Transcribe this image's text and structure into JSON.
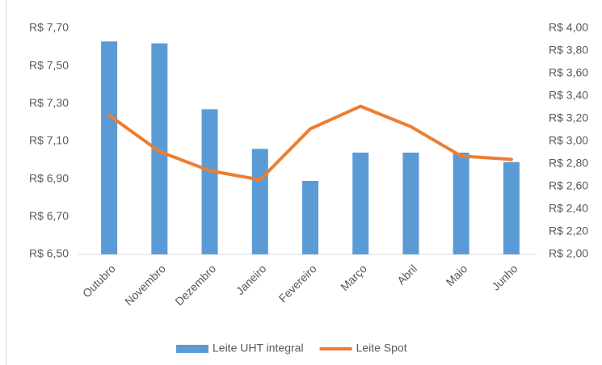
{
  "chart_data": {
    "type": "bar",
    "categories": [
      "Outubro",
      "Novembro",
      "Dezembro",
      "Janeiro",
      "Fevereiro",
      "Março",
      "Abril",
      "Maio",
      "Junho"
    ],
    "series": [
      {
        "name": "Leite UHT integral",
        "color": "#5b9bd5",
        "type": "bar",
        "values": [
          7.63,
          7.62,
          7.27,
          7.06,
          6.89,
          7.04,
          7.04,
          7.04,
          6.99
        ]
      },
      {
        "name": "Leite Spot",
        "color": "#ed7d31",
        "type": "line",
        "axis": "y2",
        "values": [
          3.23,
          2.91,
          2.74,
          2.66,
          3.11,
          3.31,
          3.13,
          2.87,
          2.84
        ]
      }
    ],
    "ylim": [
      6.5,
      7.7
    ],
    "yticks": [
      {
        "value": 6.5,
        "label": "R$ 6,50"
      },
      {
        "value": 6.7,
        "label": "R$ 6,70"
      },
      {
        "value": 6.9,
        "label": "R$ 6,90"
      },
      {
        "value": 7.1,
        "label": "R$ 7,10"
      },
      {
        "value": 7.3,
        "label": "R$ 7,30"
      },
      {
        "value": 7.5,
        "label": "R$ 7,50"
      },
      {
        "value": 7.7,
        "label": "R$ 7,70"
      }
    ],
    "y2lim": [
      2.0,
      4.0
    ],
    "y2ticks": [
      {
        "value": 2.0,
        "label": "R$ 2,00"
      },
      {
        "value": 2.2,
        "label": "R$ 2,20"
      },
      {
        "value": 2.4,
        "label": "R$ 2,40"
      },
      {
        "value": 2.6,
        "label": "R$ 2,60"
      },
      {
        "value": 2.8,
        "label": "R$ 2,80"
      },
      {
        "value": 3.0,
        "label": "R$ 3,00"
      },
      {
        "value": 3.2,
        "label": "R$ 3,20"
      },
      {
        "value": 3.4,
        "label": "R$ 3,40"
      },
      {
        "value": 3.6,
        "label": "R$ 3,60"
      },
      {
        "value": 3.8,
        "label": "R$ 3,80"
      },
      {
        "value": 4.0,
        "label": "R$ 4,00"
      }
    ],
    "grid": false,
    "legend": "bottom"
  }
}
